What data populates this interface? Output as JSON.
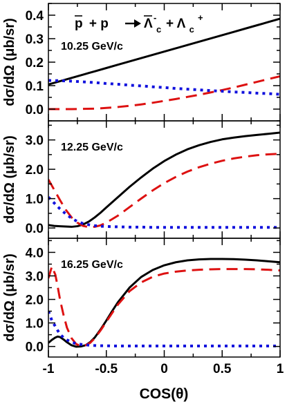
{
  "chart_data": [
    {
      "type": "line",
      "title": "",
      "reaction": {
        "p_bar": "p",
        "plus1": "+ p",
        "lambda_bar": "Λ",
        "lambda_bar_sub": "c",
        "lambda_bar_sup": "-",
        "plus2": "+ Λ",
        "lambda_sub": "c",
        "lambda_sup": "+"
      },
      "annotation": "10.25 GeV/c",
      "xlabel": "",
      "ylabel": "dσ/dΩ (μb/sr)",
      "xlim": [
        -1,
        1
      ],
      "ylim": [
        -0.05,
        0.45
      ],
      "yticks": [
        "0.0",
        "0.1",
        "0.2",
        "0.3",
        "0.4"
      ],
      "ytick_values": [
        0,
        0.1,
        0.2,
        0.3,
        0.4
      ],
      "x": [
        -1.0,
        -0.9,
        -0.8,
        -0.7,
        -0.6,
        -0.5,
        -0.4,
        -0.3,
        -0.2,
        -0.1,
        0.0,
        0.1,
        0.2,
        0.3,
        0.4,
        0.5,
        0.6,
        0.7,
        0.8,
        0.9,
        1.0
      ],
      "series": [
        {
          "color": "#000000",
          "style": "solid",
          "values": [
            0.105,
            0.119,
            0.133,
            0.147,
            0.161,
            0.175,
            0.189,
            0.203,
            0.217,
            0.231,
            0.245,
            0.259,
            0.273,
            0.287,
            0.301,
            0.315,
            0.329,
            0.343,
            0.357,
            0.371,
            0.385
          ]
        },
        {
          "color": "#dd1111",
          "style": "dashed",
          "values": [
            0.0,
            0.0,
            0.0,
            0.001,
            0.002,
            0.005,
            0.009,
            0.014,
            0.02,
            0.027,
            0.035,
            0.043,
            0.052,
            0.061,
            0.071,
            0.081,
            0.092,
            0.104,
            0.116,
            0.128,
            0.14
          ]
        },
        {
          "color": "#1111dd",
          "style": "dotted",
          "values": [
            0.122,
            0.121,
            0.119,
            0.116,
            0.113,
            0.109,
            0.106,
            0.102,
            0.099,
            0.095,
            0.092,
            0.088,
            0.085,
            0.082,
            0.079,
            0.076,
            0.073,
            0.071,
            0.068,
            0.066,
            0.063
          ]
        }
      ]
    },
    {
      "type": "line",
      "title": "",
      "annotation": "12.25 GeV/c",
      "xlabel": "",
      "ylabel": "dσ/dΩ (μb/sr)",
      "xlim": [
        -1,
        1
      ],
      "ylim": [
        -0.35,
        3.65
      ],
      "yticks": [
        "0.0",
        "1.0",
        "2.0",
        "3.0"
      ],
      "ytick_values": [
        0,
        1,
        2,
        3
      ],
      "x": [
        -1.0,
        -0.95,
        -0.9,
        -0.85,
        -0.8,
        -0.75,
        -0.7,
        -0.65,
        -0.6,
        -0.55,
        -0.5,
        -0.4,
        -0.3,
        -0.2,
        -0.1,
        0.0,
        0.1,
        0.2,
        0.3,
        0.4,
        0.5,
        0.6,
        0.7,
        0.8,
        0.9,
        1.0
      ],
      "series": [
        {
          "color": "#000000",
          "style": "solid",
          "values": [
            0.1,
            0.07,
            0.06,
            0.05,
            0.04,
            0.06,
            0.12,
            0.22,
            0.36,
            0.52,
            0.7,
            1.05,
            1.4,
            1.72,
            2.02,
            2.28,
            2.5,
            2.68,
            2.82,
            2.93,
            3.02,
            3.08,
            3.13,
            3.17,
            3.21,
            3.25
          ]
        },
        {
          "color": "#dd1111",
          "style": "dashed",
          "values": [
            1.65,
            1.3,
            0.95,
            0.62,
            0.36,
            0.18,
            0.07,
            0.03,
            0.04,
            0.09,
            0.18,
            0.42,
            0.71,
            1.0,
            1.28,
            1.53,
            1.74,
            1.92,
            2.07,
            2.19,
            2.29,
            2.37,
            2.43,
            2.48,
            2.51,
            2.53
          ]
        },
        {
          "color": "#1111dd",
          "style": "dotted",
          "values": [
            1.05,
            0.85,
            0.65,
            0.48,
            0.33,
            0.22,
            0.15,
            0.11,
            0.08,
            0.06,
            0.05,
            0.04,
            0.03,
            0.03,
            0.02,
            0.02,
            0.02,
            0.02,
            0.02,
            0.02,
            0.02,
            0.02,
            0.02,
            0.02,
            0.02,
            0.02
          ]
        }
      ]
    },
    {
      "type": "line",
      "title": "",
      "annotation": "16.25 GeV/c",
      "xlabel": "COS(θ)",
      "ylabel": "dσ/dΩ (μb/sr)",
      "xlim": [
        -1,
        1
      ],
      "ylim": [
        -0.45,
        4.6
      ],
      "yticks": [
        "0.0",
        "1.0",
        "2.0",
        "3.0",
        "4.0"
      ],
      "ytick_values": [
        0,
        1,
        2,
        3,
        4
      ],
      "xticks": [
        "-1",
        "-0.5",
        "0",
        "0.5",
        "1"
      ],
      "xtick_values": [
        -1,
        -0.5,
        0,
        0.5,
        1
      ],
      "x": [
        -1.0,
        -0.97,
        -0.94,
        -0.92,
        -0.9,
        -0.87,
        -0.84,
        -0.8,
        -0.76,
        -0.72,
        -0.68,
        -0.64,
        -0.6,
        -0.55,
        -0.5,
        -0.45,
        -0.4,
        -0.3,
        -0.2,
        -0.1,
        0.0,
        0.1,
        0.2,
        0.3,
        0.4,
        0.5,
        0.6,
        0.7,
        0.8,
        0.9,
        1.0
      ],
      "series": [
        {
          "color": "#000000",
          "style": "solid",
          "values": [
            0.15,
            0.28,
            0.38,
            0.42,
            0.4,
            0.3,
            0.18,
            0.05,
            -0.01,
            0.0,
            0.05,
            0.18,
            0.38,
            0.72,
            1.1,
            1.5,
            1.88,
            2.5,
            2.95,
            3.25,
            3.45,
            3.58,
            3.66,
            3.7,
            3.72,
            3.72,
            3.71,
            3.69,
            3.66,
            3.62,
            3.58
          ]
        },
        {
          "color": "#dd1111",
          "style": "dashed",
          "values": [
            2.9,
            3.4,
            3.05,
            2.55,
            2.0,
            1.35,
            0.8,
            0.35,
            0.1,
            0.02,
            0.05,
            0.15,
            0.35,
            0.68,
            1.05,
            1.42,
            1.78,
            2.35,
            2.72,
            2.96,
            3.1,
            3.18,
            3.23,
            3.26,
            3.28,
            3.29,
            3.29,
            3.29,
            3.28,
            3.26,
            3.23
          ]
        },
        {
          "color": "#1111dd",
          "style": "dotted",
          "values": [
            1.5,
            1.1,
            0.85,
            0.68,
            0.52,
            0.38,
            0.28,
            0.18,
            0.12,
            0.09,
            0.07,
            0.05,
            0.04,
            0.03,
            0.03,
            0.02,
            0.02,
            0.02,
            0.02,
            0.02,
            0.02,
            0.02,
            0.02,
            0.02,
            0.02,
            0.02,
            0.02,
            0.02,
            0.02,
            0.02,
            0.02
          ]
        }
      ]
    }
  ]
}
